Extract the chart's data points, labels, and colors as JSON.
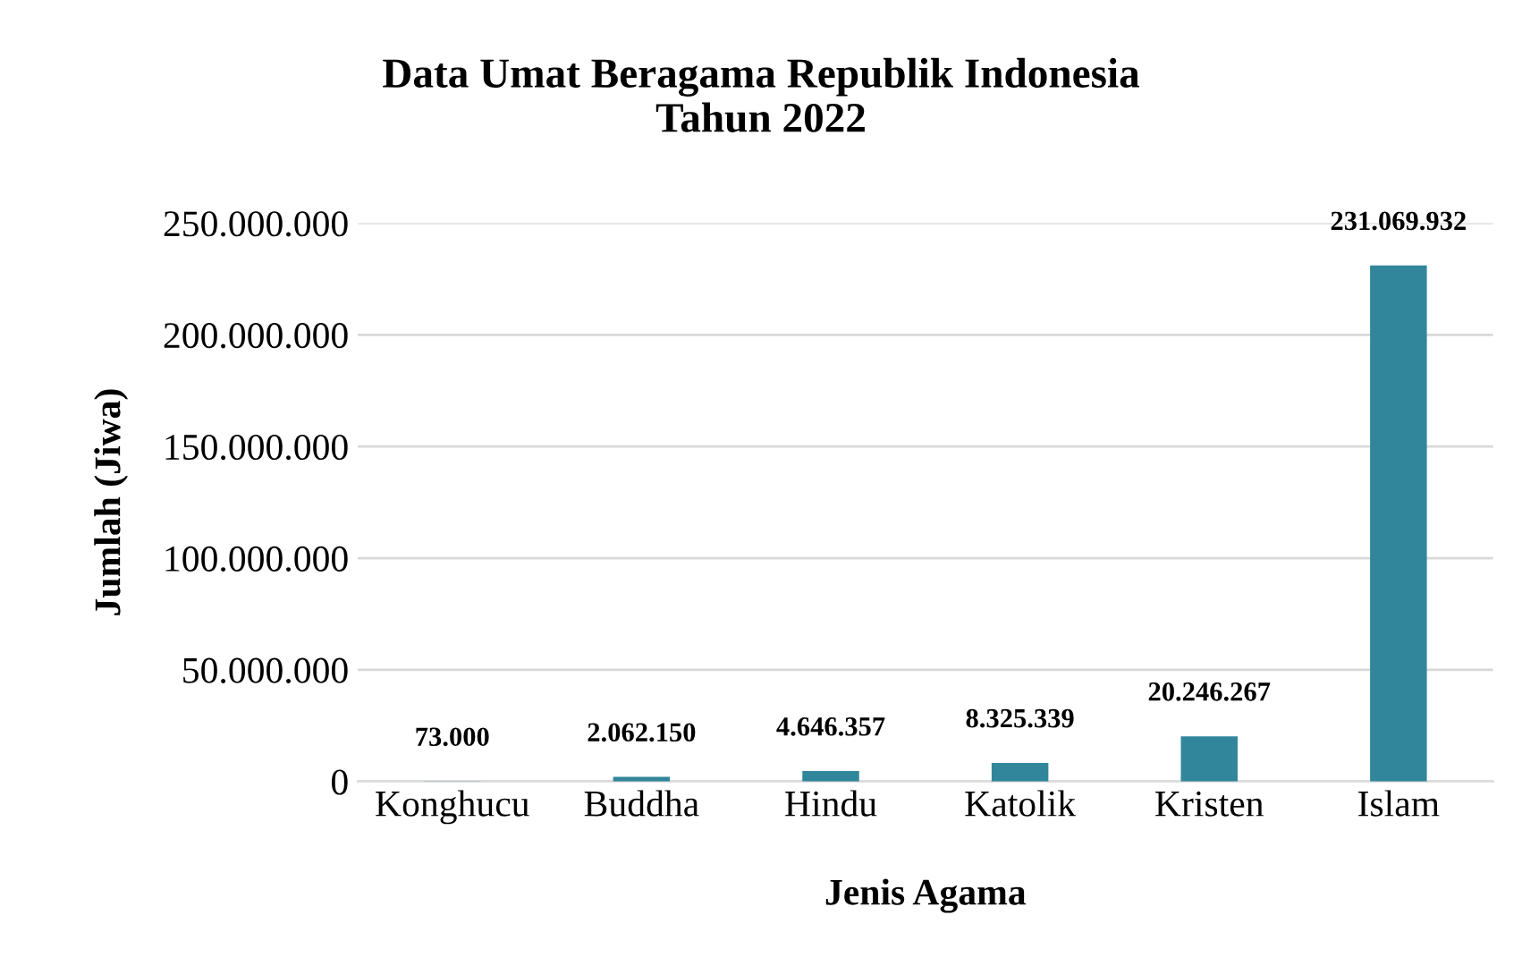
{
  "chart_data": {
    "type": "bar",
    "title": "Data Umat Beragama Republik Indonesia\nTahun 2022",
    "xlabel": "Jenis Agama",
    "ylabel": "Jumlah (Jiwa)",
    "categories": [
      "Konghucu",
      "Buddha",
      "Hindu",
      "Katolik",
      "Kristen",
      "Islam"
    ],
    "values": [
      73000,
      2062150,
      4646357,
      8325339,
      20246267,
      231069932
    ],
    "value_labels": [
      "73.000",
      "2.062.150",
      "4.646.357",
      "8.325.339",
      "20.246.267",
      "231.069.932"
    ],
    "color": "#31869b",
    "ylim": [
      0,
      250000000
    ],
    "yticks": [
      {
        "value": 0,
        "label": "0"
      },
      {
        "value": 50000000,
        "label": "50.000.000"
      },
      {
        "value": 100000000,
        "label": "100.000.000"
      },
      {
        "value": 150000000,
        "label": "150.000.000"
      },
      {
        "value": 200000000,
        "label": "200.000.000"
      },
      {
        "value": 250000000,
        "label": "250.000.000"
      }
    ],
    "grid": "y",
    "legend": false
  }
}
